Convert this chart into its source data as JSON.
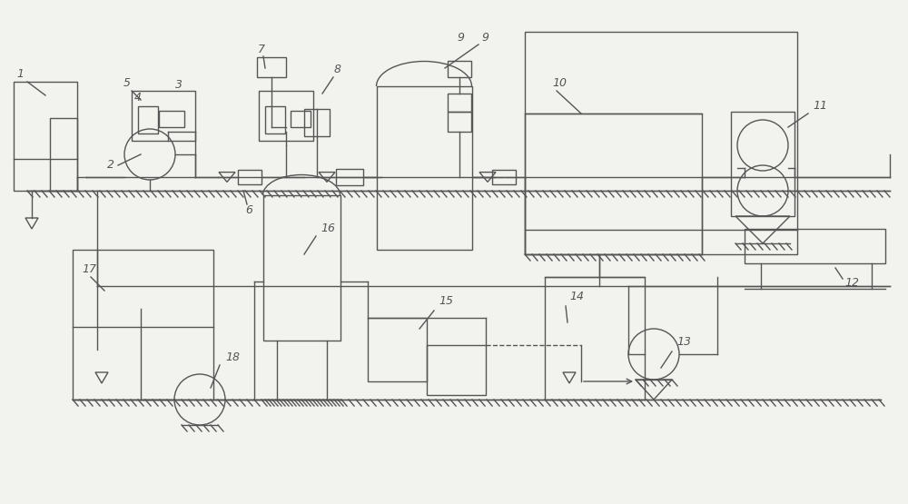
{
  "bg_color": "#f2f2ee",
  "line_color": "#555555",
  "lw": 1.0,
  "fig_w": 10.0,
  "fig_h": 5.55,
  "dpi": 100
}
